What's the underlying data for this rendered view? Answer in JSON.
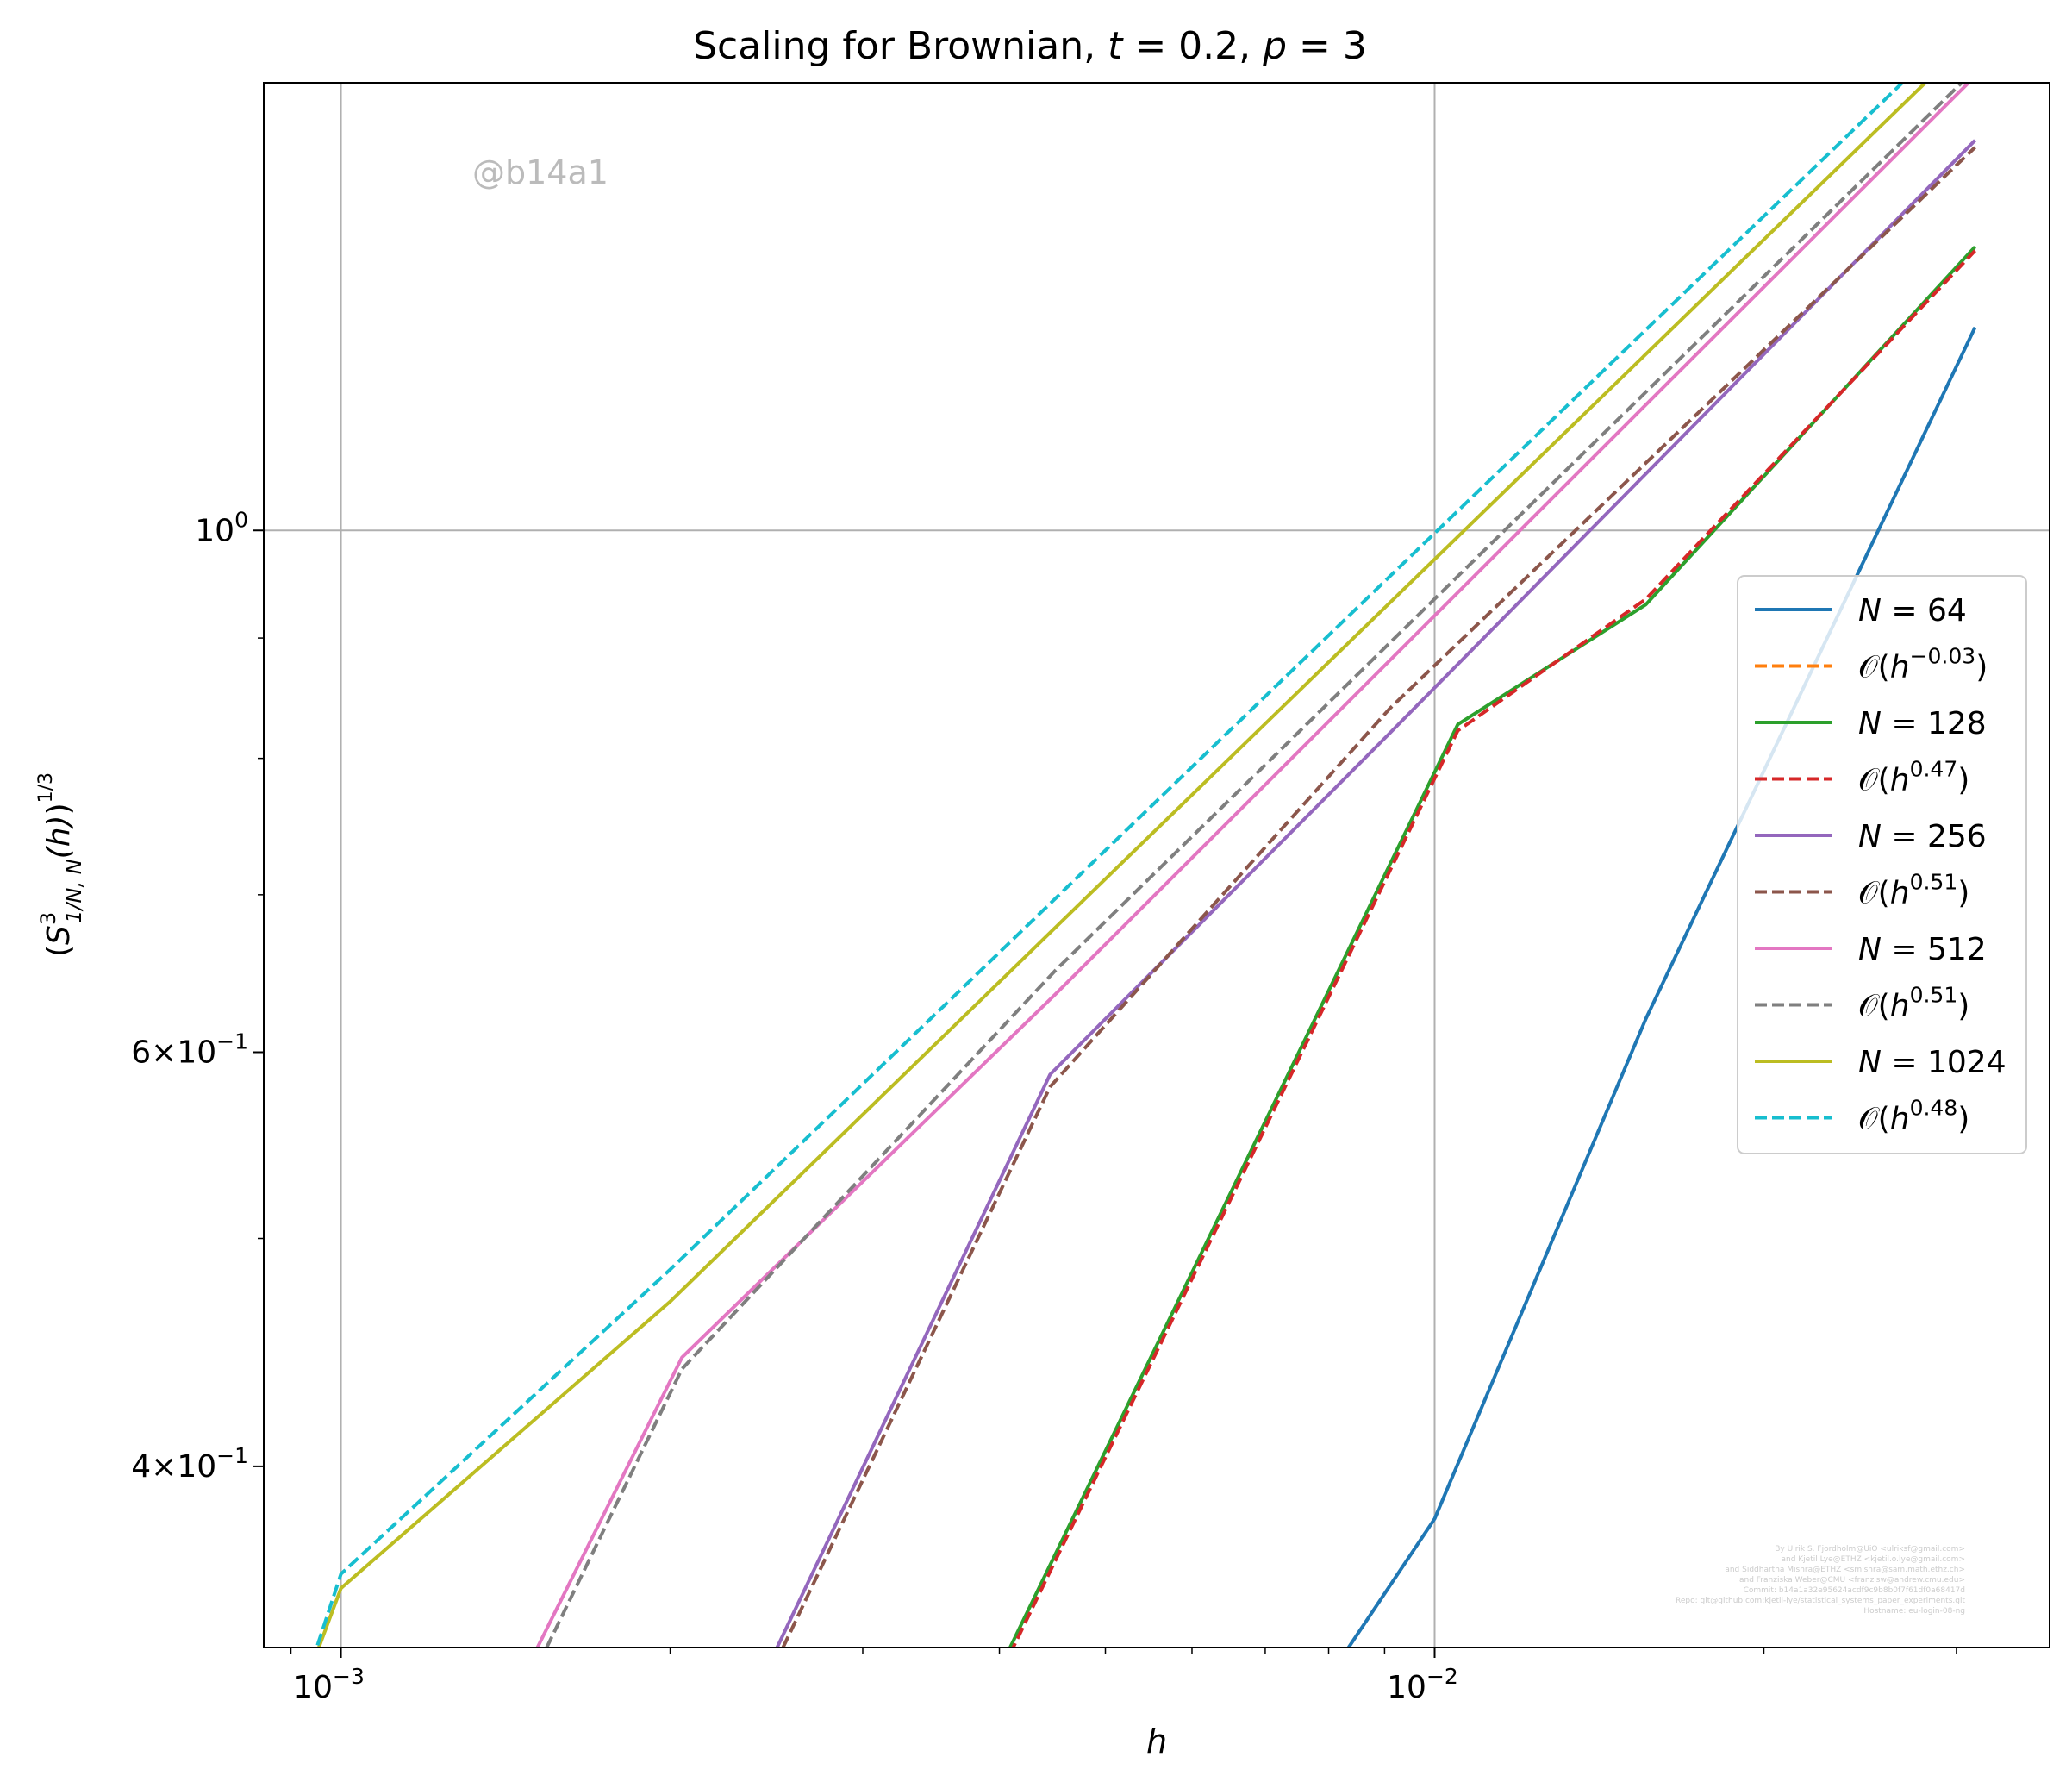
{
  "chart_data": {
    "type": "line",
    "title": "Scaling for Brownian, t = 0.2, p = 3",
    "title_parts": {
      "prefix": "Scaling for Brownian, ",
      "t_sym": "t",
      "t_eq": " = 0.2, ",
      "p_sym": "p",
      "p_eq": " = 3"
    },
    "xlabel": "h",
    "ylabel": "(S̄³₁/N,N(h))^(1/3)",
    "ylabel_parts": {
      "open": "(",
      "S": "S",
      "bar": "̄",
      "sup": "3",
      "sub": "1/N, N",
      "h": "(h)",
      "close": ")",
      "exp": "1/3"
    },
    "xscale": "log",
    "yscale": "log",
    "xlim": [
      0.00085,
      0.0365
    ],
    "ylim": [
      0.335,
      1.55
    ],
    "grid": true,
    "xticks": [
      {
        "value": 0.001,
        "base": "10",
        "exp": "−3"
      },
      {
        "value": 0.01,
        "base": "10",
        "exp": "−2"
      }
    ],
    "yticks": [
      {
        "value": 1.0,
        "base": "10",
        "exp": "0",
        "mantissa": ""
      },
      {
        "value": 0.6,
        "base": "10",
        "exp": "−1",
        "mantissa": "6×"
      },
      {
        "value": 0.4,
        "base": "10",
        "exp": "−1",
        "mantissa": "4×"
      }
    ],
    "legend_location": "center-right",
    "series": [
      {
        "name": "N = 64",
        "N": "64",
        "color": "#1f77b4",
        "dash": false,
        "x": [
          0.00781,
          0.01,
          0.0156,
          0.0312
        ],
        "y": [
          0.32,
          0.38,
          0.62,
          1.22
        ]
      },
      {
        "name": "O(h^-0.03)",
        "exp": "−0.03",
        "color": "#ff7f0e",
        "dash": true,
        "x": [],
        "y": []
      },
      {
        "name": "N = 128",
        "N": "128",
        "color": "#2ca02c",
        "dash": false,
        "x": [
          0.0039,
          0.0105,
          0.0156,
          0.0312
        ],
        "y": [
          0.32,
          0.827,
          0.93,
          1.32
        ]
      },
      {
        "name": "O(h^0.47)",
        "exp": "0.47",
        "color": "#d62728",
        "dash": true,
        "x": [
          0.0039,
          0.0105,
          0.0156,
          0.0312
        ],
        "y": [
          0.318,
          0.822,
          0.935,
          1.315
        ]
      },
      {
        "name": "N = 256",
        "N": "256",
        "color": "#9467bd",
        "dash": false,
        "x": [
          0.00239,
          0.00445,
          0.0091,
          0.0312
        ],
        "y": [
          0.32,
          0.587,
          0.82,
          1.465
        ]
      },
      {
        "name": "O(h^0.51)",
        "exp": "0.51",
        "color": "#8c564b",
        "dash": true,
        "x": [
          0.00242,
          0.00445,
          0.0091,
          0.0312
        ],
        "y": [
          0.32,
          0.58,
          0.84,
          1.455
        ]
      },
      {
        "name": "N = 512",
        "N": "512",
        "color": "#e377c2",
        "dash": false,
        "x": [
          0.00144,
          0.00205,
          0.0045,
          0.0312
        ],
        "y": [
          0.32,
          0.445,
          0.635,
          1.56
        ]
      },
      {
        "name": "O(h^0.51)",
        "exp": "0.51",
        "color": "#7f7f7f",
        "dash": true,
        "x": [
          0.00147,
          0.00205,
          0.0045,
          0.0312
        ],
        "y": [
          0.32,
          0.44,
          0.65,
          1.57
        ]
      },
      {
        "name": "N = 1024",
        "N": "1024",
        "color": "#bcbd22",
        "dash": false,
        "x": [
          0.00092,
          0.001,
          0.002,
          0.0312
        ],
        "y": [
          0.32,
          0.355,
          0.47,
          1.625
        ]
      },
      {
        "name": "O(h^0.48)",
        "exp": "0.48",
        "color": "#17becf",
        "dash": true,
        "x": [
          0.00092,
          0.001,
          0.002,
          0.0312
        ],
        "y": [
          0.32,
          0.36,
          0.485,
          1.66
        ]
      }
    ],
    "annotations": {
      "watermark": "@b14a1",
      "credits": [
        "By Ulrik S. Fjordholm@UiO <ulriksf@gmail.com>",
        "and Kjetil Lye@ETHZ <kjetil.o.lye@gmail.com>",
        "and Siddhartha Mishra@ETHZ <smishra@sam.math.ethz.ch>",
        "and Franziska Weber@CMU <franzisw@andrew.cmu.edu>",
        "Commit: b14a1a32e95624acdf9c9b8b0f7f61df0a68417d",
        "Repo: git@github.com:kjetil-lye/statistical_systems_paper_experiments.git",
        "Hostname: eu-login-08-ng"
      ]
    }
  }
}
